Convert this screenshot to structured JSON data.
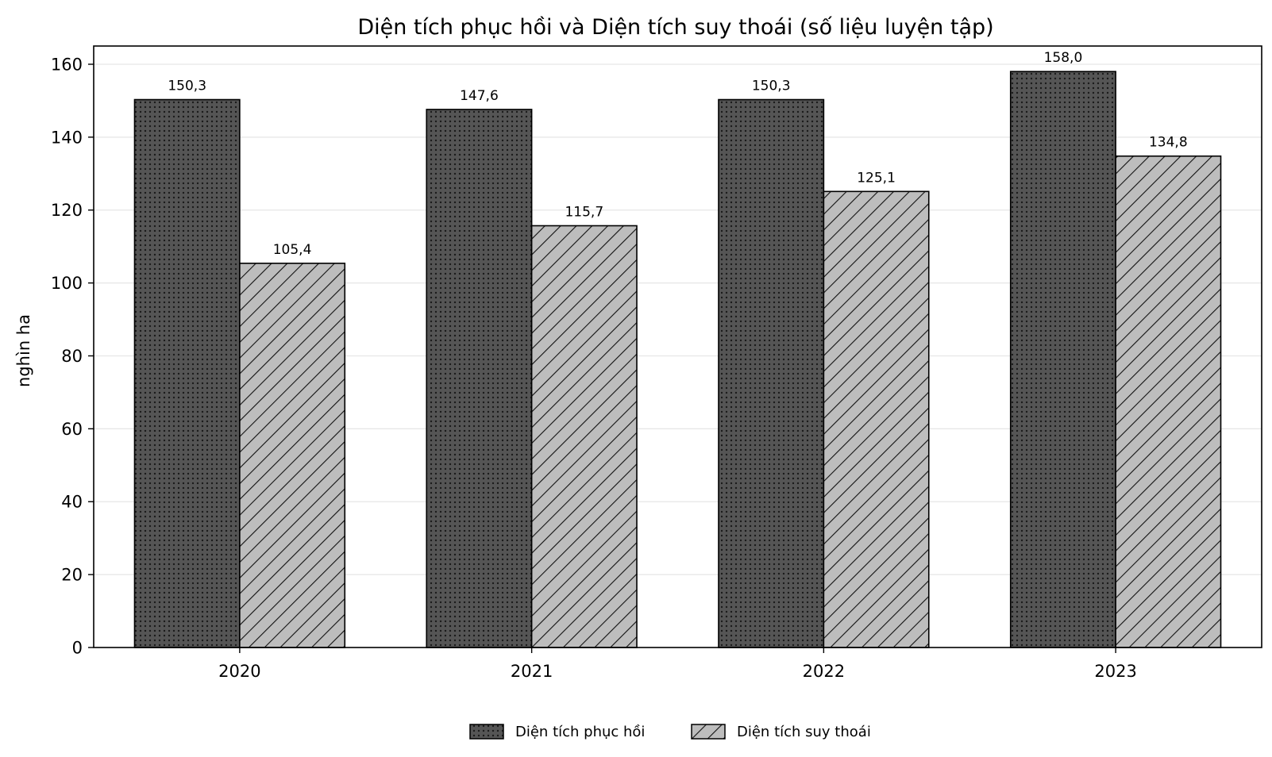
{
  "chart_data": {
    "type": "bar",
    "title": "Diện tích phục hồi và Diện tích suy thoái (số liệu luyện tập)",
    "xlabel": "",
    "ylabel": "nghìn ha",
    "categories": [
      "2020",
      "2021",
      "2022",
      "2023"
    ],
    "ylim": [
      0,
      165
    ],
    "yticks": [
      0,
      20,
      40,
      60,
      80,
      100,
      120,
      140,
      160
    ],
    "grid": "horizontal",
    "legend_position": "bottom-center",
    "series": [
      {
        "name": "Diện tích phục hồi",
        "values": [
          150.3,
          147.6,
          150.3,
          158.0
        ],
        "labels": [
          "150,3",
          "147,6",
          "150,3",
          "158,0"
        ],
        "color": "#555555",
        "pattern": "dots"
      },
      {
        "name": "Diện tích suy thoái",
        "values": [
          105.4,
          115.7,
          125.1,
          134.8
        ],
        "labels": [
          "105,4",
          "115,7",
          "125,1",
          "134,8"
        ],
        "color": "#bdbdbd",
        "pattern": "diagonal-hatch"
      }
    ]
  }
}
